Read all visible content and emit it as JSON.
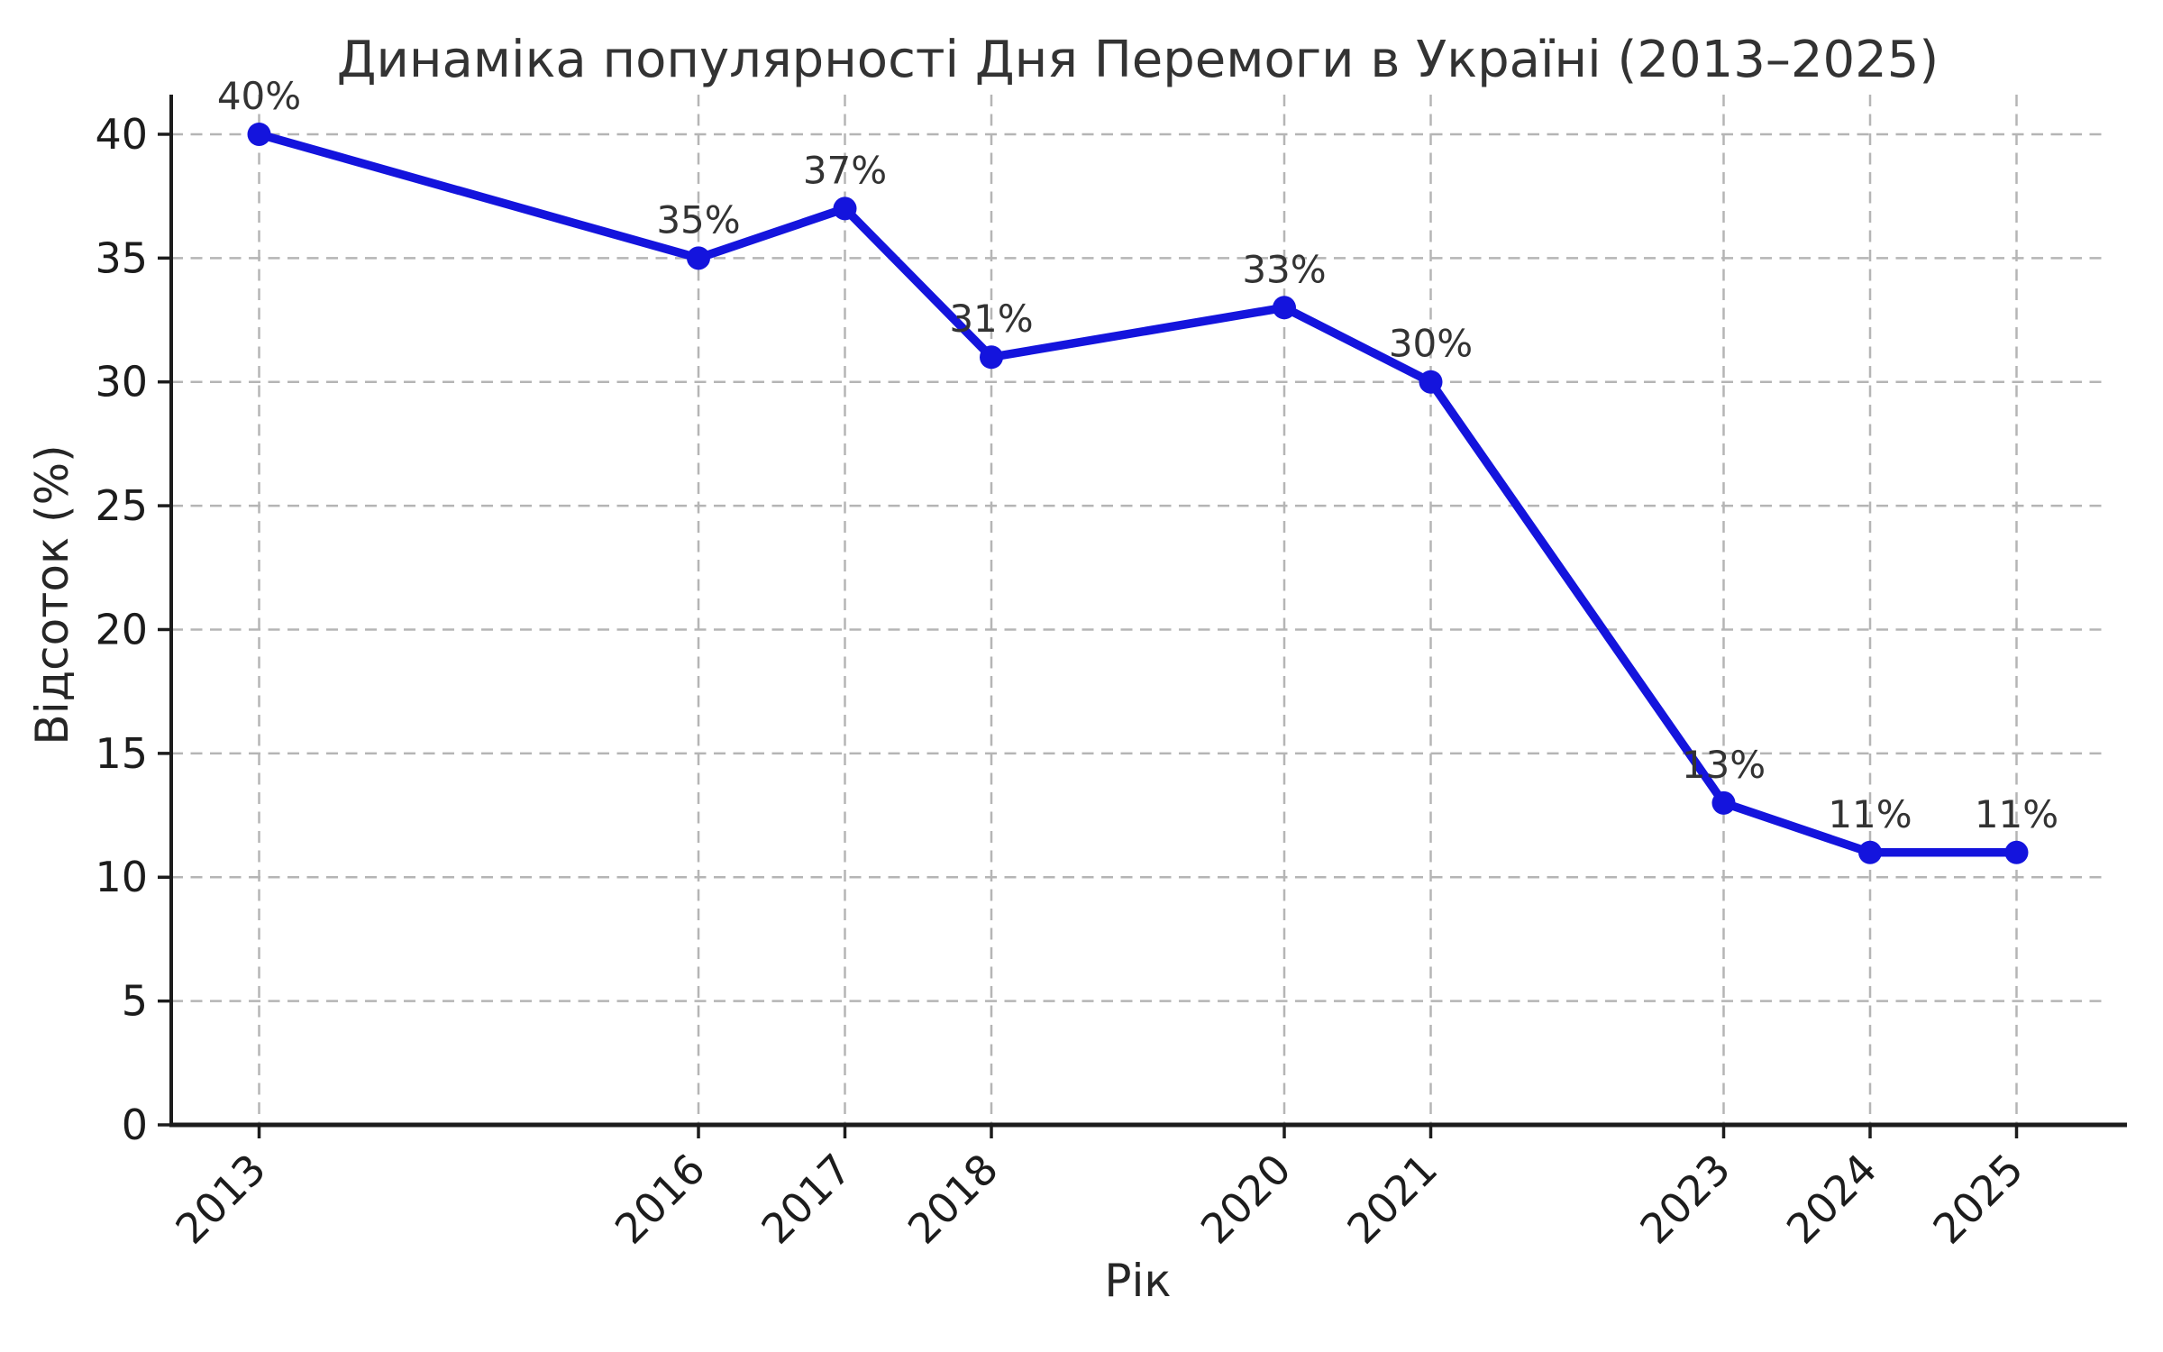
{
  "figure": {
    "background_color": "#ffffff"
  },
  "chart_data": {
    "type": "line",
    "title": "Динаміка популярності Дня Перемоги в Україні (2013–2025)",
    "xlabel": "Рік",
    "ylabel": "Відсоток (%)",
    "x": [
      2013,
      2016,
      2017,
      2018,
      2020,
      2021,
      2023,
      2024,
      2025
    ],
    "series": [
      {
        "values": [
          40,
          35,
          37,
          31,
          33,
          30,
          13,
          11,
          11
        ],
        "point_labels": [
          "40%",
          "35%",
          "37%",
          "31%",
          "33%",
          "30%",
          "13%",
          "11%",
          "11%"
        ]
      }
    ],
    "x_tick_labels": [
      "2013",
      "2016",
      "2017",
      "2018",
      "2020",
      "2021",
      "2023",
      "2024",
      "2025"
    ],
    "y_ticks": [
      0,
      5,
      10,
      15,
      20,
      25,
      30,
      35,
      40
    ],
    "xlim": [
      2012.4,
      2025.6
    ],
    "ylim": [
      0,
      41.6
    ],
    "grid": true,
    "grid_style": "dashed",
    "legend": "none",
    "colors": {
      "line": "#1414dd",
      "marker": "#1414dd",
      "grid": "#b5b5b5",
      "spine": "#1c1c1c",
      "tick_label": "#1c1c1c",
      "title": "#333333",
      "point_label": "#333333"
    }
  }
}
